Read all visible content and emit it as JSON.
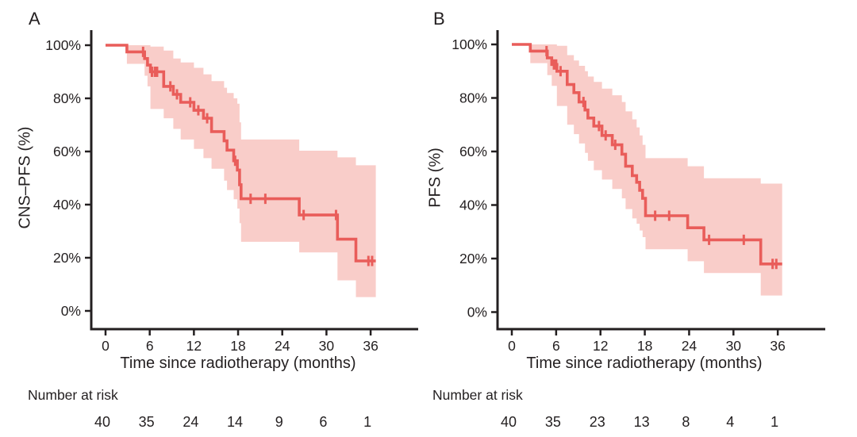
{
  "chart_data": [
    {
      "type": "line",
      "subtype": "kaplan-meier-step",
      "panel_label": "A",
      "xlabel": "Time since radiotherapy (months)",
      "ylabel": "CNS–PFS (%)",
      "xlim": [
        0,
        42
      ],
      "ylim": [
        0,
        100
      ],
      "x_ticks": [
        0,
        6,
        12,
        18,
        24,
        30,
        36
      ],
      "y_ticks": [
        100,
        80,
        60,
        40,
        20,
        0
      ],
      "y_tick_suffix": "%",
      "grid": false,
      "legend": "none",
      "colors": {
        "line": "#e95d5a",
        "band": "#f9cdc9",
        "axis": "#231f20",
        "text": "#231f20"
      },
      "series": [
        {
          "name": "CNS-PFS",
          "steps": [
            [
              0,
              100
            ],
            [
              2.9,
              97.5
            ],
            [
              5.3,
              95
            ],
            [
              5.7,
              92.5
            ],
            [
              6.1,
              90
            ],
            [
              7.9,
              84.5
            ],
            [
              9.2,
              81.5
            ],
            [
              10.2,
              78.5
            ],
            [
              12.0,
              75.5
            ],
            [
              13.3,
              72.5
            ],
            [
              14.4,
              67.5
            ],
            [
              16.1,
              64
            ],
            [
              16.5,
              60.5
            ],
            [
              17.4,
              56.5
            ],
            [
              17.9,
              53
            ],
            [
              18.2,
              47.5
            ],
            [
              18.4,
              42.2
            ],
            [
              26.3,
              36.1
            ],
            [
              31.5,
              27
            ],
            [
              34.0,
              18.8
            ]
          ],
          "end_t": 36.7,
          "censor_marks": [
            [
              5.1,
              97.5
            ],
            [
              6.3,
              90
            ],
            [
              6.7,
              90
            ],
            [
              7.0,
              90
            ],
            [
              8.8,
              84.5
            ],
            [
              9.7,
              81.5
            ],
            [
              11.5,
              78.5
            ],
            [
              12.6,
              75.5
            ],
            [
              13.8,
              72.5
            ],
            [
              17.6,
              56.5
            ],
            [
              19.7,
              42.2
            ],
            [
              21.7,
              42.2
            ],
            [
              26.9,
              36.1
            ],
            [
              31.3,
              36.1
            ],
            [
              35.7,
              18.8
            ],
            [
              36.2,
              18.8
            ]
          ],
          "ci_levels": [
            [
              2.9,
              93,
              100
            ],
            [
              5.3,
              88.5,
              100
            ],
            [
              5.7,
              84.5,
              100
            ],
            [
              6.1,
              76,
              99.5
            ],
            [
              7.9,
              72.5,
              98
            ],
            [
              9.2,
              68.5,
              95
            ],
            [
              10.2,
              64.5,
              93.5
            ],
            [
              12.0,
              61,
              91.5
            ],
            [
              13.3,
              57.5,
              89
            ],
            [
              14.4,
              53.5,
              86.5
            ],
            [
              16.1,
              49,
              84
            ],
            [
              16.5,
              45.5,
              82
            ],
            [
              17.4,
              42,
              80
            ],
            [
              17.9,
              38.5,
              78
            ],
            [
              18.2,
              33,
              71
            ],
            [
              18.4,
              26,
              64.5
            ],
            [
              26.3,
              22,
              60.3
            ],
            [
              31.5,
              11.5,
              57.8
            ],
            [
              34.0,
              5.2,
              54.8
            ]
          ]
        }
      ],
      "risk_table": {
        "label": "Number at risk",
        "times": [
          0,
          6,
          12,
          18,
          24,
          30,
          36
        ],
        "counts": [
          40,
          35,
          24,
          14,
          9,
          6,
          1
        ]
      }
    },
    {
      "type": "line",
      "subtype": "kaplan-meier-step",
      "panel_label": "B",
      "xlabel": "Time since radiotherapy (months)",
      "ylabel": "PFS (%)",
      "xlim": [
        0,
        42
      ],
      "ylim": [
        0,
        100
      ],
      "x_ticks": [
        0,
        6,
        12,
        18,
        24,
        30,
        36
      ],
      "y_ticks": [
        100,
        80,
        60,
        40,
        20,
        0
      ],
      "y_tick_suffix": "%",
      "grid": false,
      "legend": "none",
      "colors": {
        "line": "#e95d5a",
        "band": "#f9cdc9",
        "axis": "#231f20",
        "text": "#231f20"
      },
      "series": [
        {
          "name": "PFS",
          "steps": [
            [
              0,
              100
            ],
            [
              2.5,
              97.5
            ],
            [
              4.8,
              95
            ],
            [
              5.4,
              92.5
            ],
            [
              6.1,
              90
            ],
            [
              7.5,
              85
            ],
            [
              8.4,
              82
            ],
            [
              9.1,
              78.5
            ],
            [
              9.9,
              75.5
            ],
            [
              10.3,
              72.5
            ],
            [
              11.1,
              69.5
            ],
            [
              12.2,
              66
            ],
            [
              13.6,
              62.5
            ],
            [
              14.9,
              59
            ],
            [
              15.4,
              54.5
            ],
            [
              16.3,
              51
            ],
            [
              16.9,
              48.5
            ],
            [
              17.3,
              45.5
            ],
            [
              17.7,
              42.5
            ],
            [
              18.1,
              36
            ],
            [
              23.8,
              31.5
            ],
            [
              26.0,
              27
            ],
            [
              33.7,
              18
            ]
          ],
          "end_t": 36.6,
          "censor_marks": [
            [
              4.7,
              97.5
            ],
            [
              5.7,
              92.5
            ],
            [
              6.0,
              92.5
            ],
            [
              6.6,
              90
            ],
            [
              9.7,
              78.5
            ],
            [
              11.8,
              69.5
            ],
            [
              12.7,
              66
            ],
            [
              14.0,
              62.5
            ],
            [
              19.4,
              36
            ],
            [
              21.3,
              36
            ],
            [
              26.7,
              27
            ],
            [
              31.4,
              27
            ],
            [
              35.3,
              18
            ],
            [
              35.8,
              18
            ]
          ],
          "ci_levels": [
            [
              2.5,
              93,
              100
            ],
            [
              4.8,
              88.5,
              100
            ],
            [
              5.4,
              84.5,
              100
            ],
            [
              6.1,
              77,
              99.5
            ],
            [
              7.5,
              70,
              96
            ],
            [
              8.4,
              66.5,
              94
            ],
            [
              9.1,
              63,
              92
            ],
            [
              9.9,
              59.5,
              90
            ],
            [
              10.3,
              56.5,
              88
            ],
            [
              11.1,
              53,
              86
            ],
            [
              12.2,
              49.5,
              83.5
            ],
            [
              13.6,
              46,
              81
            ],
            [
              14.9,
              42.5,
              78.5
            ],
            [
              15.4,
              38.5,
              75
            ],
            [
              16.3,
              35,
              72
            ],
            [
              16.9,
              33,
              69
            ],
            [
              17.3,
              30.5,
              66
            ],
            [
              17.7,
              28,
              62.5
            ],
            [
              18.1,
              23.5,
              57.5
            ],
            [
              23.8,
              19,
              54.5
            ],
            [
              26.0,
              14.6,
              50
            ],
            [
              33.7,
              6.2,
              48
            ]
          ]
        }
      ],
      "risk_table": {
        "label": "Number at risk",
        "times": [
          0,
          6,
          12,
          18,
          24,
          30,
          36
        ],
        "counts": [
          40,
          35,
          23,
          13,
          8,
          4,
          1
        ]
      }
    }
  ]
}
